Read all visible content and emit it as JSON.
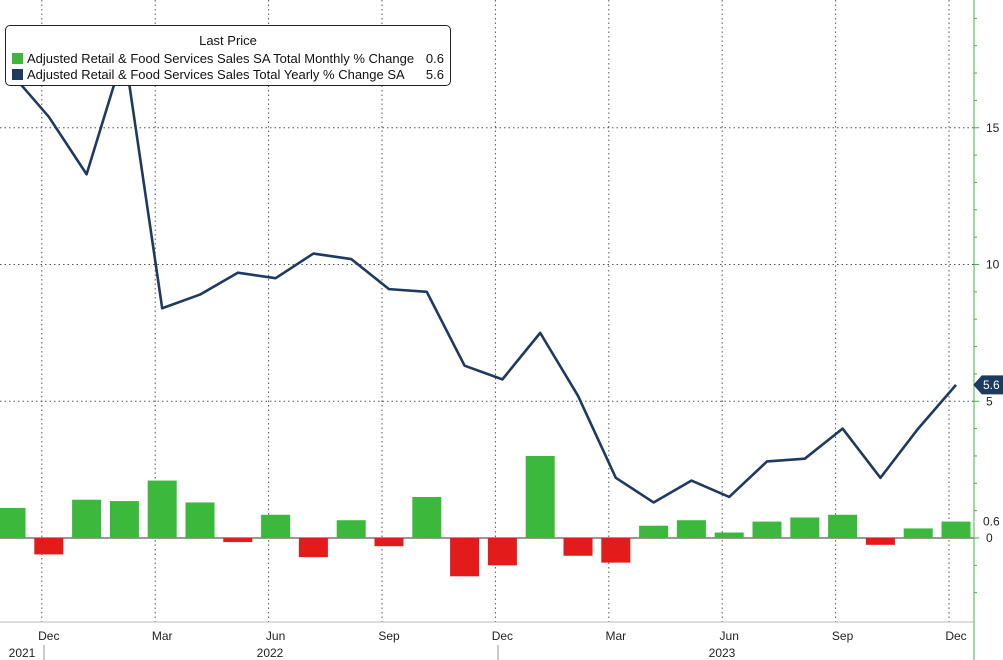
{
  "legend": {
    "title": "Last Price",
    "items": [
      {
        "label": "Adjusted Retail & Food Services Sales SA Total Monthly % Change",
        "value": "0.6",
        "color": "#3cb93c"
      },
      {
        "label": "Adjusted Retail & Food Services Sales Total Yearly % Change SA",
        "value": "5.6",
        "color": "#1e3a5f"
      }
    ]
  },
  "chart_data": {
    "type": "bar+line",
    "title": "",
    "xlabel": "",
    "ylabel": "",
    "ylim": [
      -2.5,
      19.5
    ],
    "y_axis_side": "right",
    "y_ticks": [
      0,
      5,
      10,
      15
    ],
    "grid": true,
    "x_month_labels": [
      "Dec",
      "Mar",
      "Jun",
      "Sep",
      "Dec",
      "Mar",
      "Jun",
      "Sep",
      "Dec"
    ],
    "x_year_labels": [
      "2021",
      "2022",
      "2023"
    ],
    "x": [
      "2021-11",
      "2021-12",
      "2022-01",
      "2022-02",
      "2022-03",
      "2022-04",
      "2022-05",
      "2022-06",
      "2022-07",
      "2022-08",
      "2022-09",
      "2022-10",
      "2022-11",
      "2022-12",
      "2023-01",
      "2023-02",
      "2023-03",
      "2023-04",
      "2023-05",
      "2023-06",
      "2023-07",
      "2023-08",
      "2023-09",
      "2023-10",
      "2023-11",
      "2023-12"
    ],
    "series": [
      {
        "name": "Adjusted Retail & Food Services Sales SA Total Monthly % Change",
        "type": "bar",
        "positive_color": "#3cb93c",
        "negative_color": "#e31b1b",
        "values": [
          1.1,
          -0.6,
          1.4,
          1.35,
          2.1,
          1.3,
          -0.15,
          0.85,
          -0.7,
          0.65,
          -0.3,
          1.5,
          -1.4,
          -1.0,
          3.0,
          -0.65,
          -0.9,
          0.45,
          0.65,
          0.2,
          0.6,
          0.75,
          0.85,
          -0.25,
          0.35,
          0.6
        ]
      },
      {
        "name": "Adjusted Retail & Food Services Sales Total Yearly % Change SA",
        "type": "line",
        "color": "#1e3a5f",
        "values": [
          17.0,
          15.4,
          13.3,
          17.8,
          8.4,
          8.9,
          9.7,
          9.5,
          10.4,
          10.2,
          9.1,
          9.0,
          6.3,
          5.8,
          7.5,
          5.2,
          2.2,
          1.3,
          2.1,
          1.5,
          2.8,
          2.9,
          4.0,
          2.2,
          4.0,
          5.6
        ]
      }
    ],
    "last_value_tags": [
      {
        "value": "5.6",
        "color": "#1e3a5f"
      },
      {
        "value": "0.6",
        "color": "#3cb93c"
      }
    ]
  }
}
